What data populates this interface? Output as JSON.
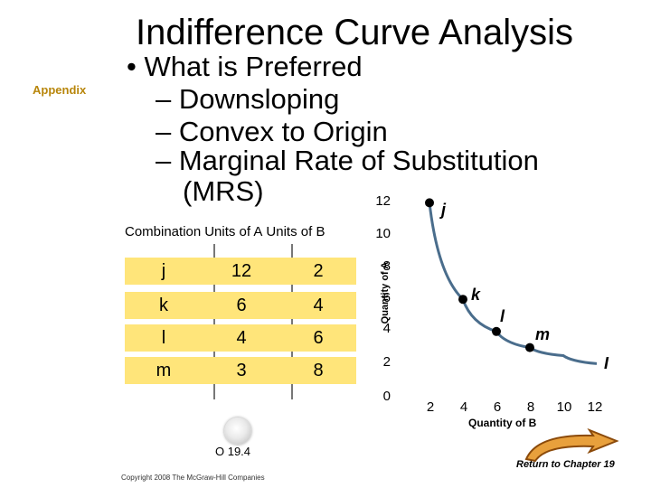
{
  "slide": {
    "title": "Indifference Curve Analysis",
    "section_tag": "Appendix",
    "bullet": "• What is Preferred",
    "sub_bullets": [
      "– Downsloping",
      "– Convex to Origin",
      "– Marginal Rate of Substitution",
      "(MRS)"
    ]
  },
  "table": {
    "headers": [
      "Combination",
      "Units of A",
      "Units of B"
    ],
    "rows": [
      {
        "combination": "j",
        "units_a": "12",
        "units_b": "2"
      },
      {
        "combination": "k",
        "units_a": "6",
        "units_b": "4"
      },
      {
        "combination": "l",
        "units_a": "4",
        "units_b": "6"
      },
      {
        "combination": "m",
        "units_a": "3",
        "units_b": "8"
      }
    ],
    "row_color": "#ffe57a"
  },
  "chart_data": {
    "type": "line",
    "xlabel": "Quantity of B",
    "ylabel": "Quantity of A",
    "x_ticks": [
      "2",
      "4",
      "6",
      "8",
      "10",
      "12"
    ],
    "y_ticks": [
      "0",
      "2",
      "4",
      "6",
      "8",
      "10",
      "12"
    ],
    "xlim": [
      0,
      12
    ],
    "ylim": [
      0,
      12
    ],
    "series": [
      {
        "name": "I",
        "points": [
          {
            "label": "j",
            "x": 2,
            "y": 12
          },
          {
            "label": "k",
            "x": 4,
            "y": 6
          },
          {
            "label": "l",
            "x": 6,
            "y": 4
          },
          {
            "label": "m",
            "x": 8,
            "y": 3
          }
        ],
        "curve_extension": [
          {
            "x": 10,
            "y": 2.5
          },
          {
            "x": 12,
            "y": 2
          }
        ]
      }
    ],
    "curve_label": "I",
    "line_color": "#4a6d8c",
    "point_color": "#000000"
  },
  "footer": {
    "slide_number": "O 19.4",
    "copyright": "Copyright 2008 The McGraw-Hill Companies",
    "return_link": "Return to Chapter 19"
  }
}
